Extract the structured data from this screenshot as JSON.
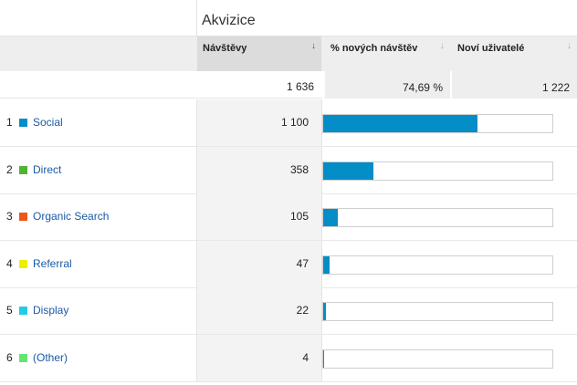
{
  "group_title": "Akvizice",
  "columns": [
    {
      "label": "Návštěvy",
      "sort_icon": "↓",
      "active": true
    },
    {
      "label": "% nových návštěv",
      "sort_icon": "↓",
      "active": false
    },
    {
      "label": "Noví uživatelé",
      "sort_icon": "↓",
      "active": false
    }
  ],
  "totals": {
    "visits": "1 636",
    "new_visits_pct": "74,69 %",
    "new_users": "1 222"
  },
  "rows": [
    {
      "index": "1",
      "label": "Social",
      "color": "#058dc7",
      "visits": "1 100",
      "share": 0.672
    },
    {
      "index": "2",
      "label": "Direct",
      "color": "#50b432",
      "visits": "358",
      "share": 0.219
    },
    {
      "index": "3",
      "label": "Organic Search",
      "color": "#ed561b",
      "visits": "105",
      "share": 0.064
    },
    {
      "index": "4",
      "label": "Referral",
      "color": "#edef00",
      "visits": "47",
      "share": 0.029
    },
    {
      "index": "5",
      "label": "Display",
      "color": "#24cbe5",
      "visits": "22",
      "share": 0.013
    },
    {
      "index": "6",
      "label": "(Other)",
      "color": "#64e572",
      "visits": "4",
      "share": 0.002
    }
  ]
}
